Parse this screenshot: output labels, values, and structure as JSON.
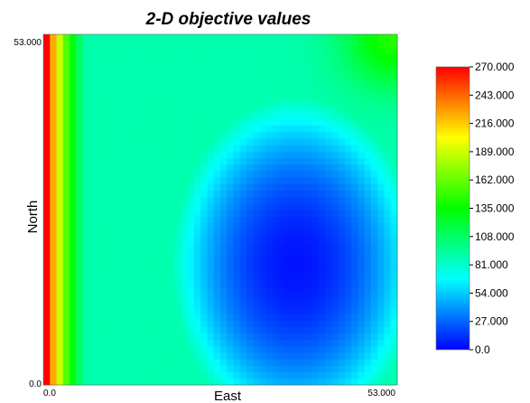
{
  "chart_data": {
    "type": "heatmap",
    "title": "2-D objective values",
    "xlabel": "East",
    "ylabel": "North",
    "x_ticks": [
      "0.0",
      "53.000"
    ],
    "y_ticks": [
      "0.0",
      "53.000"
    ],
    "xlim": [
      0,
      53
    ],
    "ylim": [
      0,
      53
    ],
    "grid_size": [
      54,
      54
    ],
    "colorbar": {
      "ticks": [
        "0.0",
        "27.000",
        "54.000",
        "81.000",
        "108.000",
        "135.000",
        "162.000",
        "189.000",
        "216.000",
        "243.000",
        "270.000"
      ],
      "min": 0,
      "max": 270
    },
    "description_of_field": {
      "left_edge_max": 270,
      "basin_center": [
        38,
        18
      ],
      "basin_min": 0,
      "top_right_local_value": 115
    },
    "colors": [
      "#0000ff",
      "#00ffff",
      "#00ff00",
      "#ffff00",
      "#ff0000"
    ]
  }
}
